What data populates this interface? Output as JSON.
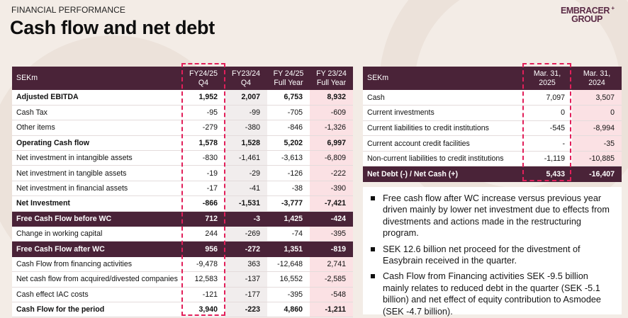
{
  "header": {
    "kicker": "FINANCIAL PERFORMANCE",
    "title": "Cash flow and net debt",
    "logo_line1": "EMBRACER",
    "logo_line2": "GROUP",
    "logo_mark": "+"
  },
  "cash_flow_table": {
    "headers": [
      "SEKm",
      "FY24/25\nQ4",
      "FY23/24\nQ4",
      "FY 24/25\nFull Year",
      "FY 23/24\nFull Year"
    ],
    "rows": [
      {
        "label": "Adjusted EBITDA",
        "values": [
          "1,952",
          "2,007",
          "6,753",
          "8,932"
        ]
      },
      {
        "label": "Cash Tax",
        "values": [
          "-95",
          "-99",
          "-705",
          "-609"
        ]
      },
      {
        "label": "Other items",
        "values": [
          "-279",
          "-380",
          "-846",
          "-1,326"
        ]
      },
      {
        "label": "Operating Cash flow",
        "values": [
          "1,578",
          "1,528",
          "5,202",
          "6,997"
        ]
      },
      {
        "label": "Net investment in intangible assets",
        "values": [
          "-830",
          "-1,461",
          "-3,613",
          "-6,809"
        ]
      },
      {
        "label": "Net investment in tangible assets",
        "values": [
          "-19",
          "-29",
          "-126",
          "-222"
        ]
      },
      {
        "label": "Net investment in financial assets",
        "values": [
          "-17",
          "-41",
          "-38",
          "-390"
        ]
      },
      {
        "label": "Net Investment",
        "values": [
          "-866",
          "-1,531",
          "-3,777",
          "-7,421"
        ]
      },
      {
        "label": "Free Cash Flow before WC",
        "values": [
          "712",
          "-3",
          "1,425",
          "-424"
        ]
      },
      {
        "label": "Change in working capital",
        "values": [
          "244",
          "-269",
          "-74",
          "-395"
        ]
      },
      {
        "label": "Free Cash Flow after WC",
        "values": [
          "956",
          "-272",
          "1,351",
          "-819"
        ]
      },
      {
        "label": "Cash Flow from financing activities",
        "values": [
          "-9,478",
          "363",
          "-12,648",
          "2,741"
        ]
      },
      {
        "label": "Net cash flow from acquired/divested companies",
        "values": [
          "12,583",
          "-137",
          "16,552",
          "-2,585"
        ]
      },
      {
        "label": "Cash effect IAC costs",
        "values": [
          "-121",
          "-177",
          "-395",
          "-548"
        ]
      },
      {
        "label": "Cash Flow for the period",
        "values": [
          "3,940",
          "-223",
          "4,860",
          "-1,211"
        ]
      }
    ]
  },
  "net_debt_table": {
    "headers": [
      "SEKm",
      "Mar. 31,\n2025",
      "Mar. 31,\n2024"
    ],
    "rows": [
      {
        "label": "Cash",
        "values": [
          "7,097",
          "3,507"
        ]
      },
      {
        "label": "Current investments",
        "values": [
          "0",
          "0"
        ]
      },
      {
        "label": "Current liabilities to credit institutions",
        "values": [
          "-545",
          "-8,994"
        ]
      },
      {
        "label": "Current account credit facilities",
        "values": [
          "-",
          "-35"
        ]
      },
      {
        "label": "Non-current liabilities to credit institutions",
        "values": [
          "-1,119",
          "-10,885"
        ]
      },
      {
        "label": "Net Debt (-) / Net Cash (+)",
        "values": [
          "5,433",
          "-16,407"
        ]
      }
    ]
  },
  "notes": [
    "Free cash flow after WC increase versus previous year driven mainly by lower net investment due to effects from divestments and actions made in the restructuring program.",
    "SEK 12.6 billion net proceed for the divestment of Easybrain received in the quarter.",
    "Cash Flow from Financing activities SEK -9.5 billion mainly relates to reduced debt in the quarter (SEK -5.1 billion) and net effect of equity contribution to Asmodee (SEK -4.7 billion)."
  ],
  "colors": {
    "brand": "#4a2338",
    "highlight_dash": "#e21f5a",
    "full_year_shade": "#fbe1e4",
    "q4_shade": "#f1eded",
    "background": "#f3ece6"
  }
}
